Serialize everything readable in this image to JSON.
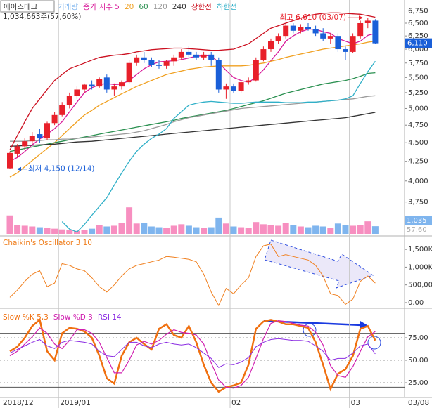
{
  "chart_data": [
    {
      "type": "candlestick",
      "name": "에이스테크",
      "info": "1,034,663주(57,60%)",
      "log_scale": true,
      "up_color": "#e8202a",
      "down_color": "#1a5fd8",
      "categories": [
        "2018/12",
        null,
        null,
        null,
        null,
        null,
        null,
        "2019/01",
        null,
        null,
        null,
        null,
        null,
        null,
        null,
        null,
        null,
        null,
        null,
        null,
        null,
        null,
        null,
        null,
        null,
        null,
        null,
        null,
        null,
        null,
        "02",
        null,
        null,
        null,
        null,
        null,
        null,
        null,
        null,
        null,
        null,
        null,
        null,
        null,
        null,
        null,
        "03",
        null,
        null,
        null
      ],
      "x_end_label": "03/08",
      "open": [
        4160,
        4350,
        4450,
        4520,
        4620,
        4560,
        4780,
        4900,
        5050,
        5200,
        5300,
        5380,
        5350,
        5500,
        5300,
        5350,
        5420,
        5750,
        5850,
        5800,
        5720,
        5700,
        5780,
        5850,
        5950,
        5900,
        5850,
        5900,
        5800,
        5300,
        5350,
        5280,
        5420,
        5450,
        5800,
        6000,
        6150,
        6250,
        6450,
        6350,
        6420,
        6380,
        6300,
        6200,
        6250,
        6000,
        5950,
        6250,
        6500,
        6550
      ],
      "high": [
        4380,
        4480,
        4560,
        4650,
        4700,
        4800,
        4950,
        5100,
        5250,
        5350,
        5400,
        5450,
        5500,
        5550,
        5400,
        5450,
        5800,
        5900,
        5950,
        5850,
        5800,
        5800,
        5900,
        6000,
        6050,
        5950,
        5950,
        5950,
        5850,
        5400,
        5400,
        5450,
        5500,
        5850,
        6050,
        6200,
        6300,
        6500,
        6500,
        6480,
        6500,
        6450,
        6400,
        6300,
        6300,
        6050,
        6300,
        6550,
        6610,
        6580
      ],
      "low": [
        4150,
        4300,
        4400,
        4480,
        4500,
        4540,
        4750,
        4880,
        5000,
        5150,
        5250,
        5300,
        5330,
        5250,
        5200,
        5300,
        5400,
        5700,
        5750,
        5680,
        5650,
        5650,
        5700,
        5800,
        5850,
        5800,
        5800,
        5700,
        5250,
        5150,
        5250,
        5250,
        5380,
        5430,
        5780,
        5950,
        6100,
        6200,
        6300,
        6300,
        6350,
        6250,
        6150,
        6100,
        5950,
        5800,
        5930,
        6200,
        6400,
        6100
      ],
      "close": [
        4360,
        4450,
        4520,
        4600,
        4560,
        4780,
        4900,
        5050,
        5200,
        5300,
        5380,
        5350,
        5480,
        5300,
        5350,
        5420,
        5750,
        5850,
        5800,
        5720,
        5700,
        5780,
        5850,
        5950,
        5900,
        5850,
        5900,
        5800,
        5300,
        5350,
        5280,
        5420,
        5450,
        5800,
        6000,
        6150,
        6250,
        6450,
        6350,
        6420,
        6380,
        6300,
        6200,
        6250,
        6000,
        5950,
        6250,
        6500,
        6550,
        6110
      ],
      "series": [
        {
          "name": "종가 지수 5",
          "color": "#d81b9a",
          "values": [
            4250,
            4300,
            4380,
            4470,
            4550,
            4620,
            4700,
            4800,
            4950,
            5100,
            5250,
            5330,
            5380,
            5400,
            5380,
            5390,
            5450,
            5550,
            5650,
            5720,
            5770,
            5780,
            5790,
            5810,
            5840,
            5870,
            5880,
            5880,
            5760,
            5620,
            5500,
            5450,
            5420,
            5500,
            5630,
            5790,
            5950,
            6150,
            6250,
            6330,
            6380,
            6380,
            6330,
            6300,
            6200,
            6150,
            6100,
            6150,
            6260,
            6300
          ]
        },
        {
          "name": "20",
          "color": "#f0a020",
          "values": [
            4050,
            4100,
            4180,
            4260,
            4340,
            4420,
            4500,
            4600,
            4700,
            4800,
            4900,
            4970,
            5050,
            5110,
            5170,
            5230,
            5290,
            5350,
            5400,
            5450,
            5500,
            5550,
            5580,
            5610,
            5640,
            5660,
            5680,
            5690,
            5700,
            5700,
            5700,
            5700,
            5710,
            5730,
            5750,
            5780,
            5810,
            5850,
            5880,
            5910,
            5940,
            5970,
            6000,
            6020,
            6040,
            6060,
            6080,
            6100,
            6130,
            6150
          ]
        },
        {
          "name": "60",
          "color": "#2a9050",
          "values": [
            4380,
            4400,
            4420,
            4440,
            4460,
            4480,
            4500,
            4520,
            4540,
            4560,
            4580,
            4600,
            4620,
            4640,
            4660,
            4680,
            4700,
            4720,
            4740,
            4760,
            4780,
            4800,
            4820,
            4850,
            4870,
            4890,
            4910,
            4930,
            4950,
            4970,
            5000,
            5030,
            5060,
            5090,
            5120,
            5160,
            5200,
            5240,
            5270,
            5300,
            5330,
            5360,
            5390,
            5410,
            5430,
            5450,
            5480,
            5520,
            5570,
            5580
          ]
        },
        {
          "name": "120",
          "color": "#9a9a9a",
          "values": [
            4520,
            4520,
            4520,
            4530,
            4530,
            4540,
            4540,
            4550,
            4550,
            4560,
            4570,
            4580,
            4590,
            4600,
            4610,
            4620,
            4630,
            4650,
            4670,
            4700,
            4730,
            4760,
            4800,
            4830,
            4860,
            4880,
            4900,
            4920,
            4940,
            4960,
            4980,
            5000,
            5010,
            5020,
            5030,
            5040,
            5050,
            5060,
            5070,
            5080,
            5090,
            5100,
            5110,
            5120,
            5130,
            5140,
            5150,
            5170,
            5190,
            5200
          ]
        },
        {
          "name": "240",
          "color": "#333333",
          "values": [
            4450,
            4455,
            4460,
            4465,
            4470,
            4475,
            4480,
            4490,
            4500,
            4510,
            4515,
            4520,
            4530,
            4540,
            4550,
            4560,
            4570,
            4580,
            4590,
            4600,
            4610,
            4620,
            4630,
            4640,
            4650,
            4660,
            4670,
            4680,
            4690,
            4700,
            4710,
            4720,
            4730,
            4740,
            4750,
            4760,
            4770,
            4780,
            4790,
            4800,
            4810,
            4820,
            4830,
            4840,
            4850,
            4860,
            4880,
            4900,
            4920,
            4940
          ]
        },
        {
          "name": "상한선",
          "color": "#cc1020",
          "values": [
            4400,
            4600,
            4800,
            5000,
            5150,
            5300,
            5450,
            5550,
            5650,
            5700,
            5750,
            5800,
            5850,
            5870,
            5890,
            5900,
            5920,
            5950,
            5970,
            5990,
            6000,
            6010,
            6020,
            6020,
            6010,
            6000,
            5990,
            5980,
            5980,
            5990,
            6000,
            6050,
            6100,
            6200,
            6300,
            6400,
            6450,
            6500,
            6550,
            6600,
            6650,
            6680,
            6700,
            6710,
            6710,
            6700,
            6690,
            6680,
            6650,
            6620
          ]
        },
        {
          "name": "하한선",
          "color": "#30b0c8",
          "values": [
            null,
            null,
            null,
            null,
            null,
            null,
            null,
            3530,
            3450,
            3420,
            3500,
            3600,
            3700,
            3800,
            3950,
            4100,
            4250,
            4380,
            4480,
            4560,
            4620,
            4700,
            4850,
            4950,
            5050,
            5080,
            5100,
            5110,
            5100,
            5090,
            5080,
            5080,
            5090,
            5100,
            5100,
            5100,
            5100,
            5090,
            5090,
            5090,
            5100,
            5100,
            5110,
            5120,
            5130,
            5150,
            5200,
            5400,
            5600,
            5780
          ]
        }
      ],
      "volume": {
        "name": "거래량",
        "up_color": "#f78fc0",
        "down_color": "#7fb5ee",
        "vlim": [
          0,
          4000000
        ],
        "values": [
          2500000,
          1200000,
          1100000,
          1000000,
          900000,
          800000,
          700000,
          600000,
          500000,
          400000,
          500000,
          700000,
          1200000,
          1000000,
          1100000,
          1500000,
          3600000,
          1400000,
          1500000,
          1000000,
          900000,
          800000,
          1100000,
          1300000,
          1100000,
          900000,
          800000,
          900000,
          2200000,
          1400000,
          1000000,
          900000,
          800000,
          1600000,
          1300000,
          1200000,
          1100000,
          1500000,
          1200000,
          1000000,
          900000,
          1100000,
          1000000,
          800000,
          1400000,
          1200000,
          1100000,
          1200000,
          1700000,
          1034663
        ],
        "last_labels": [
          "1,035",
          "57,60"
        ]
      },
      "annotations": [
        {
          "text": "최고 6,610 (03/07)",
          "value": 6610,
          "color": "#e8202a",
          "side": "right"
        },
        {
          "text": "최저 4,150 (12/14)",
          "value": 4150,
          "color": "#1a5fd8",
          "side": "left"
        }
      ],
      "last_price": {
        "value": 6110,
        "label": "6,110"
      },
      "ylim": [
        3400,
        6950
      ],
      "yticks": [
        {
          "value": 6750,
          "label": "6,750"
        },
        {
          "value": 6500,
          "label": "6,500"
        },
        {
          "value": 6250,
          "label": "6,250"
        },
        {
          "value": 6000,
          "label": "6,000"
        },
        {
          "value": 5750,
          "label": "5,750"
        },
        {
          "value": 5500,
          "label": "5,500"
        },
        {
          "value": 5250,
          "label": "5,250"
        },
        {
          "value": 5000,
          "label": "5,000"
        },
        {
          "value": 4750,
          "label": "4,750"
        },
        {
          "value": 4500,
          "label": "4,500"
        },
        {
          "value": 4250,
          "label": "4,250"
        },
        {
          "value": 4000,
          "label": "4,000"
        },
        {
          "value": 3750,
          "label": "3,750"
        }
      ]
    },
    {
      "type": "line",
      "title": "Chaikin's Oscillator 3 10",
      "color": "#f08020",
      "values": [
        150000,
        350000,
        600000,
        800000,
        900000,
        450000,
        550000,
        1100000,
        1050000,
        950000,
        900000,
        700000,
        450000,
        300000,
        500000,
        750000,
        950000,
        1050000,
        1100000,
        1150000,
        1200000,
        1300000,
        1280000,
        1250000,
        1220000,
        1150000,
        800000,
        300000,
        -80000,
        400000,
        250000,
        500000,
        700000,
        1300000,
        1600000,
        1650000,
        1300000,
        1350000,
        1300000,
        1250000,
        1200000,
        1050000,
        750000,
        250000,
        200000,
        -50000,
        100000,
        600000,
        750000,
        550000
      ],
      "ylim": [
        -140000,
        1800000
      ],
      "yticks": [
        {
          "value": 1500000,
          "label": "1,500K"
        },
        {
          "value": 1000000,
          "label": "1,000K"
        },
        {
          "value": 500000,
          "label": "500,000"
        },
        {
          "value": 0,
          "label": "0.00"
        }
      ]
    },
    {
      "type": "line",
      "series": [
        {
          "name": "Slow %K 5,3",
          "color": "#f07010",
          "width": 2.5,
          "values": [
            60,
            65,
            75,
            88,
            95,
            60,
            50,
            80,
            86,
            85,
            82,
            75,
            55,
            30,
            24,
            55,
            70,
            75,
            68,
            62,
            85,
            90,
            78,
            75,
            88,
            70,
            45,
            25,
            15,
            20,
            22,
            25,
            45,
            85,
            93,
            95,
            93,
            90,
            90,
            88,
            86,
            70,
            45,
            18,
            35,
            40,
            55,
            85,
            88,
            72
          ]
        },
        {
          "name": "Slow %D 3",
          "color": "#d020b0",
          "width": 1.2,
          "values": [
            55,
            60,
            68,
            76,
            86,
            80,
            68,
            63,
            72,
            84,
            84,
            80,
            70,
            53,
            36,
            36,
            50,
            67,
            71,
            68,
            72,
            79,
            84,
            81,
            80,
            78,
            68,
            47,
            28,
            20,
            19,
            22,
            31,
            52,
            74,
            91,
            94,
            93,
            91,
            89,
            88,
            81,
            67,
            44,
            33,
            31,
            43,
            60,
            76,
            82
          ]
        },
        {
          "name": "RSI 14",
          "color": "#8a2be2",
          "width": 1,
          "values": [
            58,
            62,
            66,
            70,
            73,
            66,
            63,
            70,
            72,
            71,
            70,
            68,
            60,
            55,
            54,
            62,
            70,
            70,
            66,
            64,
            68,
            70,
            68,
            67,
            68,
            64,
            58,
            52,
            42,
            46,
            45,
            48,
            53,
            65,
            70,
            73,
            74,
            73,
            72,
            72,
            71,
            66,
            60,
            50,
            52,
            52,
            58,
            66,
            68,
            57
          ]
        }
      ],
      "hlines": [
        80,
        20
      ],
      "ylim": [
        8.6,
        107
      ],
      "yticks": [
        {
          "value": 75,
          "label": "75.00"
        },
        {
          "value": 50,
          "label": "50.00"
        },
        {
          "value": 25,
          "label": "25.00"
        }
      ]
    }
  ]
}
